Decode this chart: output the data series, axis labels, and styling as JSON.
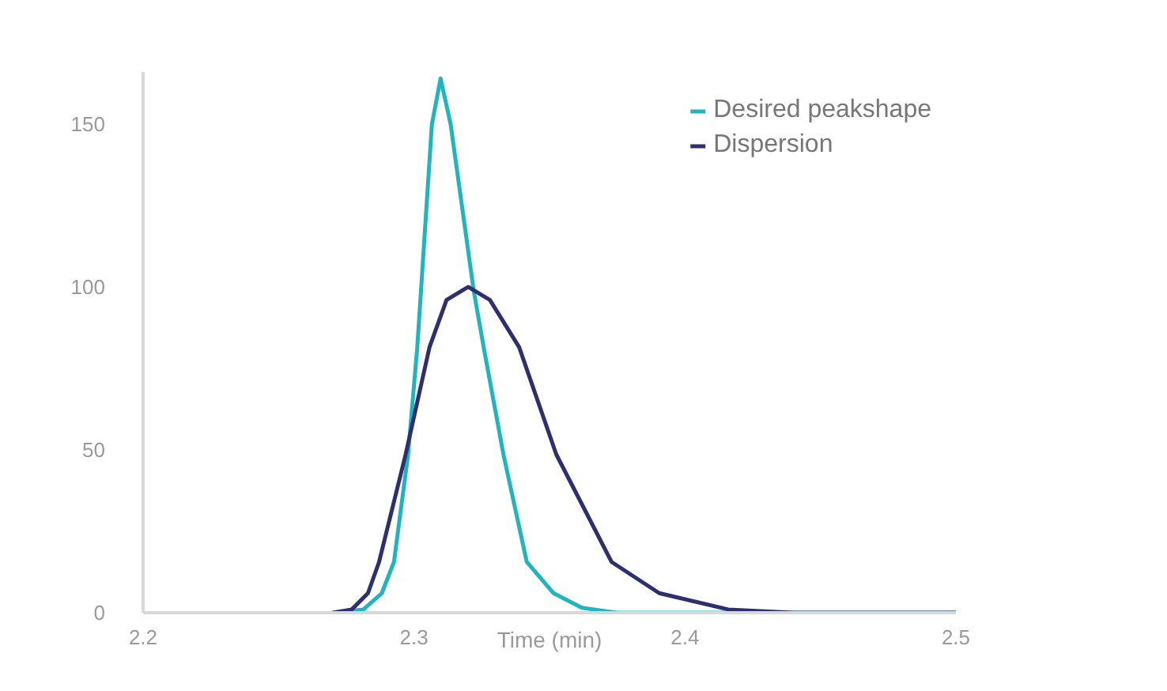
{
  "chart_data": {
    "type": "line",
    "xlabel": "Time (min)",
    "xlim": [
      2.2,
      2.5
    ],
    "ylim": [
      0,
      166
    ],
    "xticks": [
      2.2,
      2.3,
      2.4,
      2.5
    ],
    "yticks": [
      0,
      50,
      100,
      150
    ],
    "grid": false,
    "legend": "top right",
    "marker": "none",
    "line_style": "solid",
    "series": [
      {
        "name": "Desired peakshape",
        "color": "#1fb5bf",
        "x": [
          2.27,
          2.2813,
          2.2881,
          2.2926,
          2.2978,
          2.3012,
          2.3066,
          2.3098,
          2.3135,
          2.322,
          2.3257,
          2.333,
          2.3416,
          2.3515,
          2.362,
          2.375,
          2.5
        ],
        "values": [
          0,
          1,
          6,
          15.6,
          48.6,
          81.5,
          150,
          164,
          150,
          99,
          81.5,
          48.6,
          15.6,
          6,
          1.5,
          0,
          0
        ]
      },
      {
        "name": "Dispersion",
        "color": "#2e2f6e",
        "x": [
          2.27,
          2.277,
          2.283,
          2.2871,
          2.2969,
          2.3057,
          2.312,
          2.32,
          2.328,
          2.3388,
          2.3525,
          2.3729,
          2.3905,
          2.416,
          2.44,
          2.5
        ],
        "values": [
          0,
          1,
          6,
          15.6,
          48.6,
          81.5,
          96,
          100,
          96,
          81.5,
          48.6,
          15.6,
          6,
          1,
          0,
          0
        ]
      }
    ]
  }
}
